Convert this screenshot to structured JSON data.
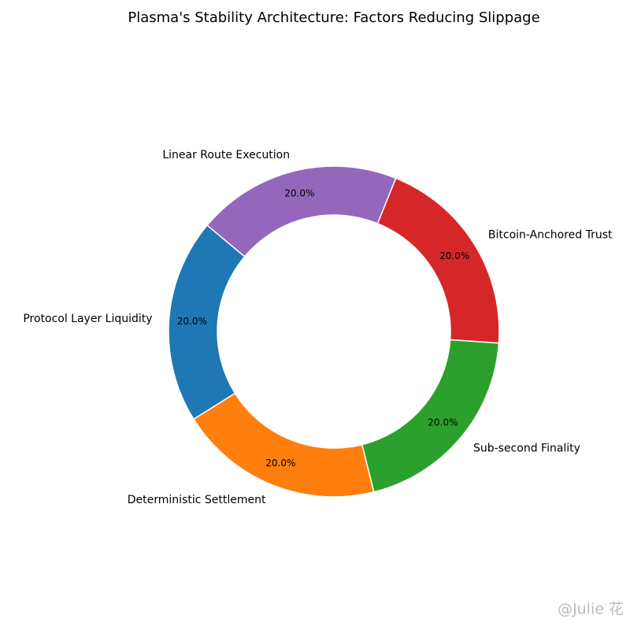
{
  "chart_data": {
    "type": "donut",
    "title": "Plasma's Stability Architecture: Factors Reducing Slippage",
    "categories": [
      "Protocol Layer Liquidity",
      "Deterministic Settlement",
      "Sub-second Finality",
      "Bitcoin-Anchored Trust",
      "Linear Route Execution"
    ],
    "values": [
      20,
      20,
      20,
      20,
      20
    ],
    "value_labels": [
      "20.0%",
      "20.0%",
      "20.0%",
      "20.0%",
      "20.0%"
    ],
    "colors": [
      "#1f77b4",
      "#ff7f0e",
      "#2ca02c",
      "#d62728",
      "#9467bd"
    ],
    "watermark": "@Julie 花"
  }
}
